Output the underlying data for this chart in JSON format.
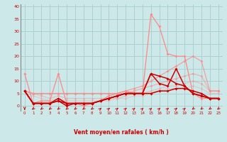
{
  "title": "",
  "xlabel": "Vent moyen/en rafales ( km/h )",
  "ylabel": "",
  "bg_color": "#cce8e8",
  "grid_color": "#aacccc",
  "text_color": "#cc0000",
  "xlim": [
    -0.5,
    23.5
  ],
  "ylim": [
    -2,
    41
  ],
  "yticks": [
    0,
    5,
    10,
    15,
    20,
    25,
    30,
    35,
    40
  ],
  "xticks": [
    0,
    1,
    2,
    3,
    4,
    5,
    6,
    7,
    8,
    9,
    10,
    11,
    12,
    13,
    14,
    15,
    16,
    17,
    18,
    19,
    20,
    21,
    22,
    23
  ],
  "series": [
    {
      "x": [
        0,
        1,
        2,
        3,
        4,
        5,
        6,
        7,
        8,
        9,
        10,
        11,
        12,
        13,
        14,
        15,
        16,
        17,
        18,
        19,
        20,
        21,
        22,
        23
      ],
      "y": [
        13,
        1,
        2,
        2,
        13,
        1,
        1,
        0,
        1,
        2,
        4,
        5,
        6,
        5,
        5,
        37,
        32,
        21,
        20,
        20,
        5,
        3,
        3,
        3
      ],
      "color": "#ff8888",
      "alpha": 1.0,
      "lw": 0.9,
      "marker": "D",
      "ms": 2.0
    },
    {
      "x": [
        0,
        1,
        2,
        3,
        4,
        5,
        6,
        7,
        8,
        9,
        10,
        11,
        12,
        13,
        14,
        15,
        16,
        17,
        18,
        19,
        20,
        21,
        22,
        23
      ],
      "y": [
        6,
        5,
        5,
        5,
        5,
        5,
        5,
        5,
        5,
        5,
        5,
        5,
        6,
        7,
        8,
        10,
        12,
        14,
        16,
        18,
        20,
        18,
        6,
        6
      ],
      "color": "#ff8888",
      "alpha": 0.75,
      "lw": 0.9,
      "marker": "D",
      "ms": 2.0
    },
    {
      "x": [
        0,
        1,
        2,
        3,
        4,
        5,
        6,
        7,
        8,
        9,
        10,
        11,
        12,
        13,
        14,
        15,
        16,
        17,
        18,
        19,
        20,
        21,
        22,
        23
      ],
      "y": [
        6,
        5,
        5,
        5,
        5,
        5,
        5,
        5,
        5,
        5,
        5,
        5,
        5,
        6,
        7,
        8,
        9,
        10,
        11,
        12,
        13,
        12,
        6,
        6
      ],
      "color": "#ff8888",
      "alpha": 0.55,
      "lw": 0.9,
      "marker": "D",
      "ms": 2.0
    },
    {
      "x": [
        0,
        1,
        2,
        3,
        4,
        5,
        6,
        7,
        8,
        9,
        10,
        11,
        12,
        13,
        14,
        15,
        16,
        17,
        18,
        19,
        20,
        21,
        22,
        23
      ],
      "y": [
        6,
        5,
        4,
        3,
        4,
        3,
        3,
        3,
        3,
        3,
        3,
        3,
        4,
        5,
        5,
        6,
        7,
        8,
        8,
        9,
        10,
        9,
        6,
        6
      ],
      "color": "#ff8888",
      "alpha": 0.4,
      "lw": 0.9,
      "marker": "D",
      "ms": 2.0
    },
    {
      "x": [
        0,
        1,
        2,
        3,
        4,
        5,
        6,
        7,
        8,
        9,
        10,
        11,
        12,
        13,
        14,
        15,
        16,
        17,
        18,
        19,
        20,
        21,
        22,
        23
      ],
      "y": [
        6,
        4,
        3,
        2,
        3,
        2,
        2,
        2,
        2,
        2,
        2,
        3,
        3,
        4,
        4,
        5,
        6,
        7,
        7,
        7,
        8,
        7,
        5,
        5
      ],
      "color": "#ff8888",
      "alpha": 0.28,
      "lw": 0.9,
      "marker": "D",
      "ms": 2.0
    },
    {
      "x": [
        0,
        1,
        2,
        3,
        4,
        5,
        6,
        7,
        8,
        9,
        10,
        11,
        12,
        13,
        14,
        15,
        16,
        17,
        18,
        19,
        20,
        21,
        22,
        23
      ],
      "y": [
        6,
        1,
        1,
        1,
        2,
        1,
        1,
        1,
        1,
        2,
        3,
        4,
        5,
        5,
        5,
        5,
        6,
        6,
        7,
        7,
        6,
        5,
        3,
        3
      ],
      "color": "#cc0000",
      "alpha": 1.0,
      "lw": 1.1,
      "marker": "D",
      "ms": 2.0
    },
    {
      "x": [
        0,
        1,
        2,
        3,
        4,
        5,
        6,
        7,
        8,
        9,
        10,
        11,
        12,
        13,
        14,
        15,
        16,
        17,
        18,
        19,
        20,
        21,
        22,
        23
      ],
      "y": [
        6,
        1,
        1,
        1,
        2,
        0,
        1,
        1,
        1,
        2,
        3,
        4,
        5,
        5,
        5,
        13,
        12,
        11,
        9,
        8,
        5,
        4,
        3,
        3
      ],
      "color": "#cc0000",
      "alpha": 1.0,
      "lw": 1.1,
      "marker": "D",
      "ms": 2.0
    },
    {
      "x": [
        0,
        1,
        2,
        3,
        4,
        5,
        6,
        7,
        8,
        9,
        10,
        11,
        12,
        13,
        14,
        15,
        16,
        17,
        18,
        19,
        20,
        21,
        22,
        23
      ],
      "y": [
        6,
        1,
        1,
        1,
        3,
        1,
        1,
        1,
        1,
        2,
        3,
        4,
        5,
        5,
        5,
        13,
        9,
        8,
        15,
        8,
        5,
        4,
        3,
        3
      ],
      "color": "#cc0000",
      "alpha": 1.0,
      "lw": 1.1,
      "marker": "D",
      "ms": 2.0
    }
  ],
  "wind_arrows": {
    "x": [
      0,
      1,
      2,
      3,
      4,
      5,
      6,
      7,
      8,
      9,
      10,
      11,
      12,
      13,
      14,
      15,
      16,
      17,
      18,
      19,
      20,
      21,
      22,
      23
    ],
    "angles": [
      270,
      225,
      225,
      225,
      225,
      225,
      225,
      225,
      225,
      45,
      45,
      45,
      45,
      45,
      45,
      45,
      45,
      45,
      45,
      45,
      225,
      225,
      225,
      225
    ]
  }
}
